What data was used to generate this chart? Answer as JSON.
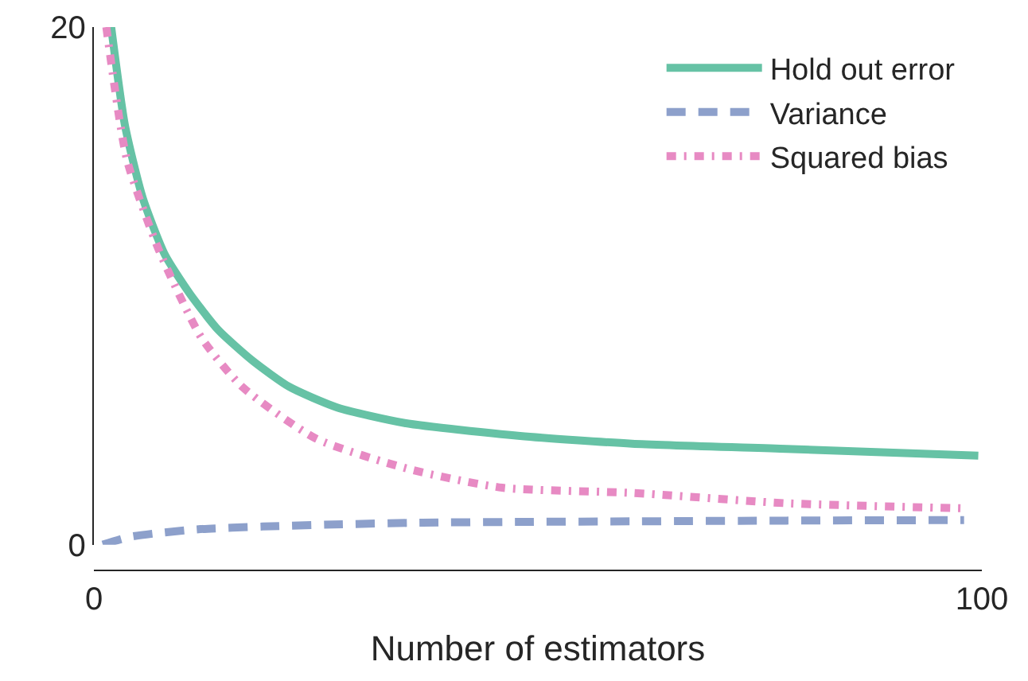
{
  "chart_data": {
    "type": "line",
    "xlabel": "Number of estimators",
    "xlim": [
      0,
      100
    ],
    "xticks": [
      0,
      100
    ],
    "ylim": [
      0,
      20
    ],
    "yticks": [
      0,
      20
    ],
    "legend": "top right",
    "marker": "none",
    "series": [
      {
        "name": "Hold out error",
        "color": "#66c2a5",
        "line_style": "solid",
        "x": [
          1.95,
          3.5,
          5.5,
          8,
          10.8,
          14,
          17.9,
          22,
          27.4,
          35,
          48,
          60.6,
          78,
          99.6
        ],
        "values": [
          20,
          16.2,
          13.4,
          11.2,
          9.7,
          8.3,
          7.1,
          6.1,
          5.3,
          4.7,
          4.2,
          3.9,
          3.7,
          3.44
        ]
      },
      {
        "name": "Variance",
        "color": "#8da0cb",
        "line_style": "dashed",
        "x": [
          1,
          4,
          7.3,
          12,
          19,
          27,
          37,
          48,
          60.6,
          78,
          98
        ],
        "values": [
          0,
          0.3,
          0.45,
          0.6,
          0.7,
          0.78,
          0.85,
          0.88,
          0.9,
          0.93,
          0.95
        ]
      },
      {
        "name": "Squared bias",
        "color": "#e78ac3",
        "line_style": "dashdot",
        "x": [
          1.4,
          3.7,
          7.3,
          12.1,
          16.7,
          25,
          35.7,
          46,
          60.6,
          78,
          98.4
        ],
        "values": [
          20,
          14.9,
          11.4,
          8,
          6.1,
          4.1,
          2.9,
          2.2,
          2,
          1.6,
          1.4
        ]
      }
    ]
  }
}
